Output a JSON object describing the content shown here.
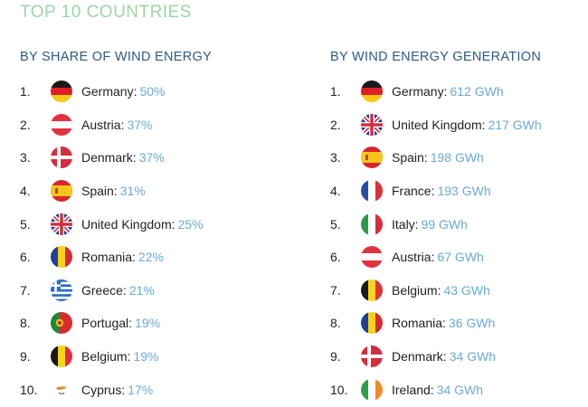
{
  "title": "TOP 10 COUNTRIES",
  "left": {
    "heading": "BY SHARE OF WIND ENERGY",
    "items": [
      {
        "rank": "1.",
        "country": "Germany:",
        "value": "50%",
        "flag": "germany-flag"
      },
      {
        "rank": "2.",
        "country": "Austria:",
        "value": "37%",
        "flag": "austria-flag"
      },
      {
        "rank": "3.",
        "country": "Denmark:",
        "value": "37%",
        "flag": "denmark-flag"
      },
      {
        "rank": "4.",
        "country": "Spain:",
        "value": "31%",
        "flag": "spain-flag"
      },
      {
        "rank": "5.",
        "country": "United Kingdom:",
        "value": "25%",
        "flag": "uk-flag"
      },
      {
        "rank": "6.",
        "country": "Romania:",
        "value": "22%",
        "flag": "romania-flag"
      },
      {
        "rank": "7.",
        "country": "Greece:",
        "value": "21%",
        "flag": "greece-flag"
      },
      {
        "rank": "8.",
        "country": "Portugal:",
        "value": "19%",
        "flag": "portugal-flag"
      },
      {
        "rank": "9.",
        "country": "Belgium:",
        "value": "19%",
        "flag": "belgium-flag"
      },
      {
        "rank": "10.",
        "country": "Cyprus:",
        "value": "17%",
        "flag": "cyprus-flag"
      }
    ]
  },
  "right": {
    "heading": "BY WIND ENERGY GENERATION",
    "items": [
      {
        "rank": "1.",
        "country": "Germany:",
        "value": "612 GWh",
        "flag": "germany-flag"
      },
      {
        "rank": "2.",
        "country": "United Kingdom:",
        "value": "217 GWh",
        "flag": "uk-flag"
      },
      {
        "rank": "3.",
        "country": "Spain:",
        "value": "198 GWh",
        "flag": "spain-flag"
      },
      {
        "rank": "4.",
        "country": "France:",
        "value": "193 GWh",
        "flag": "france-flag"
      },
      {
        "rank": "5.",
        "country": "Italy:",
        "value": "99 GWh",
        "flag": "italy-flag"
      },
      {
        "rank": "6.",
        "country": "Austria:",
        "value": "67 GWh",
        "flag": "austria-flag"
      },
      {
        "rank": "7.",
        "country": "Belgium:",
        "value": "43 GWh",
        "flag": "belgium-flag"
      },
      {
        "rank": "8.",
        "country": "Romania:",
        "value": "36 GWh",
        "flag": "romania-flag"
      },
      {
        "rank": "9.",
        "country": "Denmark:",
        "value": "34 GWh",
        "flag": "denmark-flag"
      },
      {
        "rank": "10.",
        "country": "Ireland:",
        "value": "34 GWh",
        "flag": "ireland-flag"
      }
    ]
  }
}
